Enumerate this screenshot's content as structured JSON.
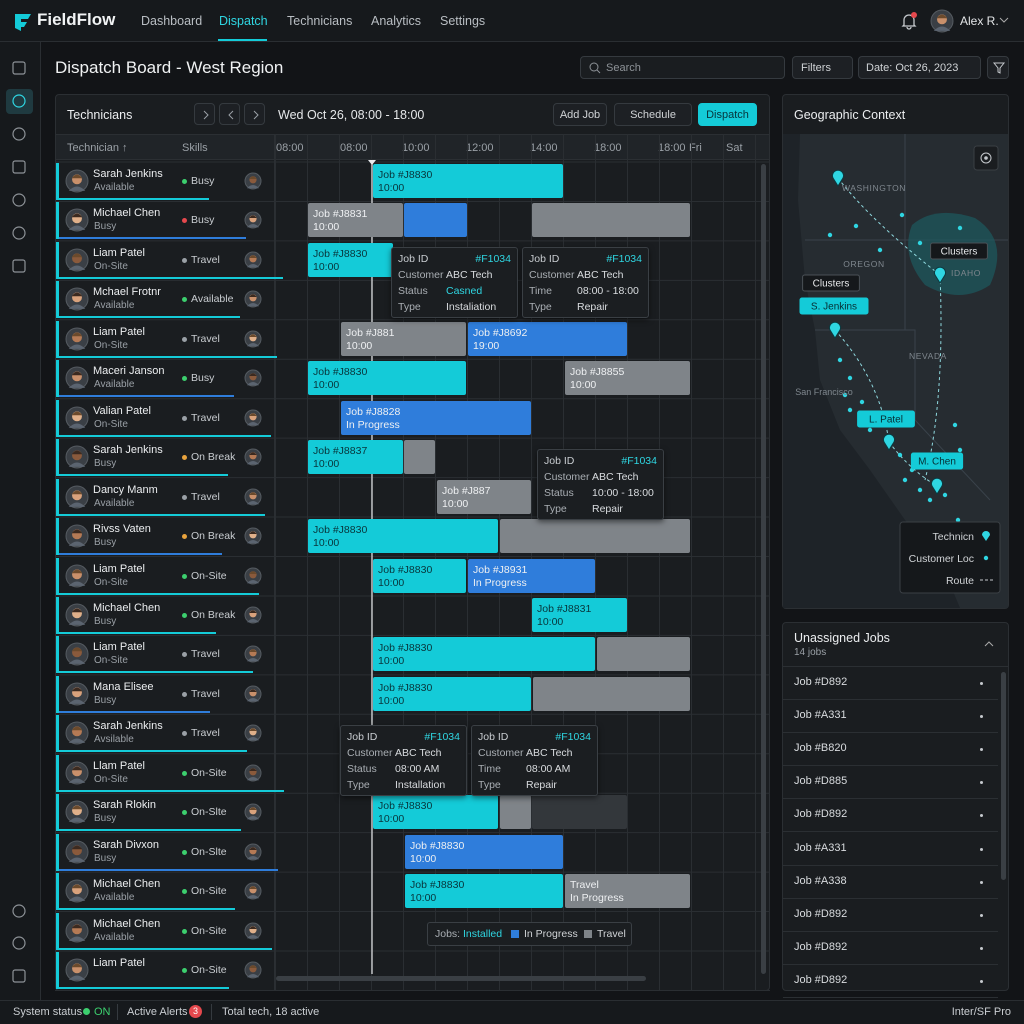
{
  "nav": {
    "brand": "FieldFlow",
    "items": [
      "Dashboard",
      "Dispatch",
      "Technicians",
      "Analytics",
      "Settings"
    ],
    "active": 1,
    "user": "Alex R."
  },
  "page": {
    "title": "Dispatch Board - West Region",
    "search": "Search",
    "filters": "Filters",
    "date": "Date: Oct 26, 2023"
  },
  "board": {
    "title": "Technicians",
    "range": "Wed Oct 26, 08:00 - 18:00",
    "buttons": [
      "Add Job",
      "Schedule",
      "Dispatch"
    ],
    "columns": [
      "Technician ↑",
      "Skills"
    ],
    "times": [
      "08:00",
      "08:00",
      "10:00",
      "12:00",
      "14:00",
      "18:00",
      "18:00",
      "Fri",
      "Sat"
    ],
    "technicians": [
      {
        "name": "Sarah Jenkins",
        "status": "Available",
        "skill": "Busy",
        "dot": "#3ccf6e"
      },
      {
        "name": "Michael Chen",
        "status": "Busy",
        "skill": "Busy",
        "dot": "#e5484d"
      },
      {
        "name": "Liam Patel",
        "status": "On-Site",
        "skill": "Travel",
        "dot": "#9aa0a6"
      },
      {
        "name": "Mchael Frotnr",
        "status": "Available",
        "skill": "Available",
        "dot": "#3ccf6e"
      },
      {
        "name": "Liam Patel",
        "status": "On-Site",
        "skill": "Travel",
        "dot": "#9aa0a6"
      },
      {
        "name": "Maceri Janson",
        "status": "Available",
        "skill": "Busy",
        "dot": "#3ccf6e"
      },
      {
        "name": "Valian Patel",
        "status": "On-Site",
        "skill": "Travel",
        "dot": "#9aa0a6"
      },
      {
        "name": "Sarah Jenkins",
        "status": "Busy",
        "skill": "On Break",
        "dot": "#e8a33d"
      },
      {
        "name": "Dancy Manm",
        "status": "Available",
        "skill": "Travel",
        "dot": "#9aa0a6"
      },
      {
        "name": "Rivss Vaten",
        "status": "Busy",
        "skill": "On Break",
        "dot": "#e8a33d"
      },
      {
        "name": "Liam Patel",
        "status": "On-Site",
        "skill": "On-Site",
        "dot": "#3ccf6e"
      },
      {
        "name": "Michael Chen",
        "status": "Busy",
        "skill": "On Break",
        "dot": "#3ccf6e"
      },
      {
        "name": "Liam Patel",
        "status": "On-Site",
        "skill": "Travel",
        "dot": "#9aa0a6"
      },
      {
        "name": "Mana Elisee",
        "status": "Busy",
        "skill": "Travel",
        "dot": "#9aa0a6"
      },
      {
        "name": "Sarah Jenkins",
        "status": "Avsilable",
        "skill": "Travel",
        "dot": "#9aa0a6"
      },
      {
        "name": "Llam Patel",
        "status": "On-Site",
        "skill": "On-Site",
        "dot": "#3ccf6e"
      },
      {
        "name": "Sarah Rlokin",
        "status": "Busy",
        "skill": "On-Slte",
        "dot": "#3ccf6e"
      },
      {
        "name": "Sarah Divxon",
        "status": "Busy",
        "skill": "On-Slte",
        "dot": "#3ccf6e"
      },
      {
        "name": "Michael Chen",
        "status": "Available",
        "skill": "On-Site",
        "dot": "#3ccf6e"
      },
      {
        "name": "Michael Chen",
        "status": "Available",
        "skill": "On-Site",
        "dot": "#3ccf6e"
      },
      {
        "name": "Liam Patel",
        "skill": "On-Site",
        "dot": "#3ccf6e"
      }
    ],
    "jobs": [
      {
        "row": 0,
        "lines": [
          "Job #J8830",
          "10:00"
        ],
        "kind": "installed"
      },
      {
        "row": 1,
        "lines": [
          "Job #J8831",
          "10:00"
        ],
        "kind": "travel"
      },
      {
        "row": 1,
        "lines": [],
        "kind": "progress"
      },
      {
        "row": 1,
        "lines": [],
        "kind": "travel"
      },
      {
        "row": 2,
        "lines": [
          "Job #J8830",
          "10:00"
        ],
        "kind": "installed"
      },
      {
        "row": 4,
        "lines": [
          "Job #J881",
          "10:00"
        ],
        "kind": "travel"
      },
      {
        "row": 4,
        "lines": [
          "Job #J8692",
          "19:00"
        ],
        "kind": "progress"
      },
      {
        "row": 5,
        "lines": [
          "Job #J8830",
          "10:00"
        ],
        "kind": "installed"
      },
      {
        "row": 5,
        "lines": [
          "Job #J8855",
          "10:00"
        ],
        "kind": "travel"
      },
      {
        "row": 6,
        "lines": [
          "Job #J8828",
          "In Progress"
        ],
        "kind": "progress"
      },
      {
        "row": 7,
        "lines": [
          "Job #J8837",
          "10:00"
        ],
        "kind": "installed"
      },
      {
        "row": 7,
        "lines": [],
        "kind": "travel"
      },
      {
        "row": 8,
        "lines": [
          "Job #J887",
          "10:00"
        ],
        "kind": "travel"
      },
      {
        "row": 9,
        "lines": [
          "Job #J8830",
          "10:00"
        ],
        "kind": "installed"
      },
      {
        "row": 9,
        "lines": [],
        "kind": "travel"
      },
      {
        "row": 10,
        "lines": [
          "Job #J8830",
          "10:00"
        ],
        "kind": "installed"
      },
      {
        "row": 10,
        "lines": [
          "Job #J8931",
          "In Progress"
        ],
        "kind": "progress"
      },
      {
        "row": 11,
        "lines": [
          "Job #J8831",
          "10:00"
        ],
        "kind": "installed"
      },
      {
        "row": 12,
        "lines": [
          "Job #J8830",
          "10:00"
        ],
        "kind": "installed"
      },
      {
        "row": 12,
        "lines": [],
        "kind": "travel"
      },
      {
        "row": 13,
        "lines": [
          "Job #J8830",
          "10:00"
        ],
        "kind": "installed"
      },
      {
        "row": 13,
        "lines": [],
        "kind": "travel"
      },
      {
        "row": 16,
        "lines": [
          "Job #J8830",
          "10:00"
        ],
        "kind": "installed"
      },
      {
        "row": 16,
        "lines": [],
        "kind": "travel"
      },
      {
        "row": 16,
        "lines": [],
        "kind": "idle"
      },
      {
        "row": 17,
        "lines": [
          "Job #J8830",
          "10:00"
        ],
        "kind": "progress"
      },
      {
        "row": 18,
        "lines": [
          "Job #J8830",
          "10:00"
        ],
        "kind": "installed"
      },
      {
        "row": 18,
        "lines": [
          "Travel",
          "In Progress"
        ],
        "kind": "travel"
      }
    ],
    "tooltips": [
      {
        "label": "Job ID",
        "id": "#F1034",
        "fields": [
          [
            "Customer",
            "ABC Tech"
          ],
          [
            "Status",
            "Casned"
          ],
          [
            "Type",
            "Instaliation"
          ]
        ],
        "highlight": 1
      },
      {
        "label": "Job ID",
        "id": "#F1034",
        "fields": [
          [
            "Customer",
            "ABC Tech"
          ],
          [
            "Time",
            "08:00 - 18:00"
          ],
          [
            "Type",
            "Repair"
          ]
        ]
      },
      {
        "label": "Job ID",
        "id": "#F1034",
        "fields": [
          [
            "Customer",
            "ABC Tech"
          ],
          [
            "Status",
            "10:00 - 18:00"
          ],
          [
            "Type",
            "Repair"
          ]
        ]
      },
      {
        "label": "Job ID",
        "id": "#F1034",
        "fields": [
          [
            "Customer",
            "ABC Tech"
          ],
          [
            "Status",
            "08:00 AM"
          ],
          [
            "Type",
            "Installation"
          ]
        ]
      },
      {
        "label": "Job ID",
        "id": "#F1034",
        "fields": [
          [
            "Customer",
            "ABC Tech"
          ],
          [
            "Time",
            "08:00 AM"
          ],
          [
            "Type",
            "Repair"
          ]
        ]
      }
    ],
    "legend": {
      "title": "Jobs:",
      "items": [
        "Installed",
        "In Progress",
        "Travel"
      ]
    }
  },
  "colors": {
    "installed": "#14cbd8",
    "progress": "#2f7ddb",
    "travel": "#7f8489",
    "idle": "#33373b"
  },
  "map": {
    "title": "Geographic Context",
    "regions": [
      "WASHINGTON",
      "OREGON",
      "IDAHO",
      "NEVADA",
      "San Francisco"
    ],
    "callouts": [
      {
        "text": "Clusters",
        "style": "dark"
      },
      {
        "text": "Clusters",
        "style": "dark"
      },
      {
        "text": "S. Jenkins",
        "style": "accent"
      },
      {
        "text": "L. Patel",
        "style": "accent"
      },
      {
        "text": "M. Chen",
        "style": "accent"
      }
    ],
    "legend": [
      "Technicn",
      "Customer Loc",
      "Route"
    ]
  },
  "unassigned": {
    "title": "Unassigned Jobs",
    "count": "14 jobs",
    "jobs": [
      "Job #D892",
      "Job #A331",
      "Job #B820",
      "Job #D885",
      "Job #D892",
      "Job #A331",
      "Job #A338",
      "Job #D892",
      "Job #D892",
      "Job #D892"
    ]
  },
  "status": {
    "system": "System status",
    "state": "ON",
    "alerts": "Active Alerts",
    "alert_count": 3,
    "total": "Total tech, 18 active",
    "font": "Inter/SF Pro"
  }
}
